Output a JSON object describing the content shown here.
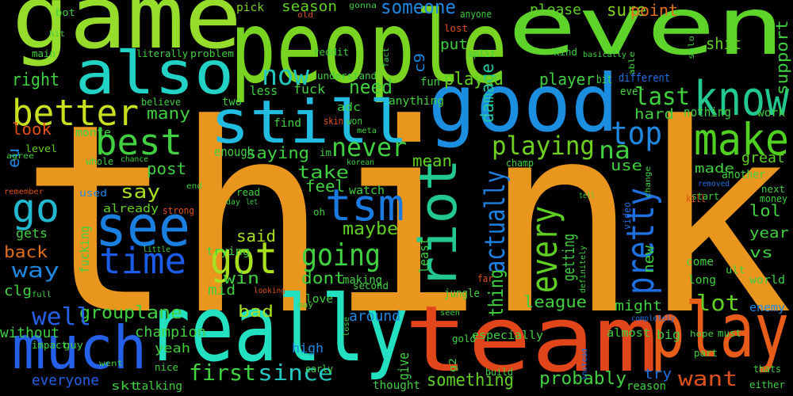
{
  "words": [
    {
      "text": "think",
      "color": "#e8961e"
    },
    {
      "text": "people",
      "color": "#78d420"
    },
    {
      "text": "game",
      "color": "#96dc2a"
    },
    {
      "text": "even",
      "color": "#5ed42a"
    },
    {
      "text": "team",
      "color": "#e0461a"
    },
    {
      "text": "play",
      "color": "#e85c1a"
    },
    {
      "text": "really",
      "color": "#22e0c0"
    },
    {
      "text": "good",
      "color": "#1c8ee0"
    },
    {
      "text": "also",
      "color": "#22d2c4"
    },
    {
      "text": "still",
      "color": "#22bce0"
    },
    {
      "text": "know",
      "color": "#22c890"
    },
    {
      "text": "make",
      "color": "#50d020"
    },
    {
      "text": "much",
      "color": "#2460e8"
    },
    {
      "text": "better",
      "color": "#c8e020"
    },
    {
      "text": "best",
      "color": "#40d040"
    },
    {
      "text": "go",
      "color": "#22b8d0"
    },
    {
      "text": "see",
      "color": "#1a80e0"
    },
    {
      "text": "time",
      "color": "#1a5ce8"
    },
    {
      "text": "got",
      "color": "#a8e020"
    },
    {
      "text": "tsm",
      "color": "#1a7ae0"
    },
    {
      "text": "riot",
      "color": "#22c890"
    },
    {
      "text": "every",
      "color": "#60d020"
    },
    {
      "text": "pretty",
      "color": "#1e70e0"
    },
    {
      "text": "actually",
      "color": "#1e80e0"
    },
    {
      "text": "thing",
      "color": "#40d040"
    },
    {
      "text": "going",
      "color": "#40d040"
    },
    {
      "text": "now",
      "color": "#22c8c0"
    },
    {
      "text": "never",
      "color": "#40d040"
    },
    {
      "text": "playing",
      "color": "#70d020"
    },
    {
      "text": "top",
      "color": "#1e88e0"
    },
    {
      "text": "last",
      "color": "#40d040"
    },
    {
      "text": "na",
      "color": "#40d040"
    },
    {
      "text": "someone",
      "color": "#1e88e0"
    },
    {
      "text": "damage",
      "color": "#22c8a0"
    },
    {
      "text": "c9",
      "color": "#1e88e0"
    },
    {
      "text": "need",
      "color": "#40d040"
    },
    {
      "text": "played",
      "color": "#60d020"
    },
    {
      "text": "player",
      "color": "#40d040"
    },
    {
      "text": "sure",
      "color": "#80d020"
    },
    {
      "text": "point",
      "color": "#e0701a"
    },
    {
      "text": "please",
      "color": "#60d020"
    },
    {
      "text": "shit",
      "color": "#60d020"
    },
    {
      "text": "support",
      "color": "#40d040"
    },
    {
      "text": "season",
      "color": "#60d020"
    },
    {
      "text": "pick",
      "color": "#80d020"
    },
    {
      "text": "right",
      "color": "#40d040"
    },
    {
      "text": "look",
      "color": "#e0501a"
    },
    {
      "text": "eu",
      "color": "#1e88e0"
    },
    {
      "text": "level",
      "color": "#60d020"
    },
    {
      "text": "agree",
      "color": "#40d040"
    },
    {
      "text": "many",
      "color": "#40d040"
    },
    {
      "text": "mean",
      "color": "#60d020"
    },
    {
      "text": "say",
      "color": "#a8e020"
    },
    {
      "text": "post",
      "color": "#40d040"
    },
    {
      "text": "take",
      "color": "#40d040"
    },
    {
      "text": "feel",
      "color": "#40d040"
    },
    {
      "text": "saying",
      "color": "#40d040"
    },
    {
      "text": "use",
      "color": "#40d040"
    },
    {
      "text": "made",
      "color": "#40d040"
    },
    {
      "text": "great",
      "color": "#60d020"
    },
    {
      "text": "hard",
      "color": "#40d040"
    },
    {
      "text": "maybe",
      "color": "#60d020"
    },
    {
      "text": "said",
      "color": "#a8e020"
    },
    {
      "text": "getting",
      "color": "#40d040"
    },
    {
      "text": "new",
      "color": "#40d040"
    },
    {
      "text": "lol",
      "color": "#40d040"
    },
    {
      "text": "year",
      "color": "#40d040"
    },
    {
      "text": "vs",
      "color": "#40d040"
    },
    {
      "text": "way",
      "color": "#1e88e0"
    },
    {
      "text": "back",
      "color": "#e0701a"
    },
    {
      "text": "gets",
      "color": "#40d040"
    },
    {
      "text": "clg",
      "color": "#40d040"
    },
    {
      "text": "win",
      "color": "#40d040"
    },
    {
      "text": "dont",
      "color": "#40d040"
    },
    {
      "text": "league",
      "color": "#40d040"
    },
    {
      "text": "lot",
      "color": "#60d020"
    },
    {
      "text": "might",
      "color": "#40d040"
    },
    {
      "text": "bad",
      "color": "#a8e020"
    },
    {
      "text": "lane",
      "color": "#40d040"
    },
    {
      "text": "group",
      "color": "#40d040"
    },
    {
      "text": "well",
      "color": "#2460e8"
    },
    {
      "text": "champion",
      "color": "#40d040"
    },
    {
      "text": "around",
      "color": "#1e88e0"
    },
    {
      "text": "love",
      "color": "#40d040"
    },
    {
      "text": "mid",
      "color": "#40d040"
    },
    {
      "text": "without",
      "color": "#40d040"
    },
    {
      "text": "high",
      "color": "#1e88e0"
    },
    {
      "text": "first",
      "color": "#40d040"
    },
    {
      "text": "since",
      "color": "#22c8c0"
    },
    {
      "text": "something",
      "color": "#60d020"
    },
    {
      "text": "probably",
      "color": "#40d040"
    },
    {
      "text": "want",
      "color": "#e0501a"
    },
    {
      "text": "try",
      "color": "#1e70e0"
    },
    {
      "text": "yeah",
      "color": "#40d040"
    },
    {
      "text": "skt",
      "color": "#40d040"
    },
    {
      "text": "talking",
      "color": "#40d040"
    },
    {
      "text": "everyone",
      "color": "#2460e8"
    },
    {
      "text": "give",
      "color": "#40d040"
    },
    {
      "text": "thought",
      "color": "#40d040"
    },
    {
      "text": "big",
      "color": "#40d040"
    },
    {
      "text": "gold",
      "color": "#40d040"
    },
    {
      "text": "fucking",
      "color": "#40d040"
    },
    {
      "text": "used",
      "color": "#1e88e0"
    },
    {
      "text": "already",
      "color": "#60d020"
    },
    {
      "text": "trying",
      "color": "#40d040"
    },
    {
      "text": "watch",
      "color": "#40d040"
    },
    {
      "text": "second",
      "color": "#40d040"
    },
    {
      "text": "least",
      "color": "#40d040"
    },
    {
      "text": "ult",
      "color": "#40d040"
    },
    {
      "text": "world",
      "color": "#40d040"
    },
    {
      "text": "long",
      "color": "#40d040"
    },
    {
      "text": "come",
      "color": "#40d040"
    },
    {
      "text": "enemy",
      "color": "#1e88e0"
    },
    {
      "text": "must",
      "color": "#40d040"
    },
    {
      "text": "hope",
      "color": "#40d040"
    },
    {
      "text": "part",
      "color": "#40d040"
    },
    {
      "text": "especially",
      "color": "#40d040"
    },
    {
      "text": "almost",
      "color": "#40d040"
    },
    {
      "text": "build",
      "color": "#40d040"
    },
    {
      "text": "went",
      "color": "#40d040"
    },
    {
      "text": "nice",
      "color": "#40d040"
    },
    {
      "text": "impact",
      "color": "#40d040"
    },
    {
      "text": "either",
      "color": "#40d040"
    },
    {
      "text": "thats",
      "color": "#40d040"
    },
    {
      "text": "reason",
      "color": "#40d040"
    },
    {
      "text": "literally",
      "color": "#40d040"
    },
    {
      "text": "problem",
      "color": "#40d040"
    },
    {
      "text": "bot",
      "color": "#40d040"
    },
    {
      "text": "hit",
      "color": "#40d040"
    },
    {
      "text": "main",
      "color": "#40d040"
    },
    {
      "text": "reddit",
      "color": "#40d040"
    },
    {
      "text": "understand",
      "color": "#40d040"
    },
    {
      "text": "old",
      "color": "#e0501a"
    },
    {
      "text": "anyone",
      "color": "#40d040"
    },
    {
      "text": "gonna",
      "color": "#40d040"
    },
    {
      "text": "lost",
      "color": "#e0501a"
    },
    {
      "text": "put",
      "color": "#40d040"
    },
    {
      "text": "fun",
      "color": "#40d040"
    },
    {
      "text": "anything",
      "color": "#40d040"
    },
    {
      "text": "fuck",
      "color": "#40d040"
    },
    {
      "text": "less",
      "color": "#40d040"
    },
    {
      "text": "two",
      "color": "#40d040"
    },
    {
      "text": "find",
      "color": "#40d040"
    },
    {
      "text": "im",
      "color": "#40d040"
    },
    {
      "text": "enough",
      "color": "#40d040"
    },
    {
      "text": "won",
      "color": "#40d040"
    },
    {
      "text": "skin",
      "color": "#e0501a"
    },
    {
      "text": "adc",
      "color": "#40d040"
    },
    {
      "text": "korean",
      "color": "#40d040"
    },
    {
      "text": "meta",
      "color": "#40d040"
    },
    {
      "text": "fact",
      "color": "#40d040"
    },
    {
      "text": "split",
      "color": "#40d040"
    },
    {
      "text": "kind",
      "color": "#40d040"
    },
    {
      "text": "basically",
      "color": "#40d040"
    },
    {
      "text": "able",
      "color": "#40d040"
    },
    {
      "text": "bit",
      "color": "#40d040"
    },
    {
      "text": "different",
      "color": "#1e70e0"
    },
    {
      "text": "ever",
      "color": "#40d040"
    },
    {
      "text": "work",
      "color": "#40d040"
    },
    {
      "text": "nothing",
      "color": "#40d040"
    },
    {
      "text": "believe",
      "color": "#40d040"
    },
    {
      "text": "chance",
      "color": "#40d040"
    },
    {
      "text": "whole",
      "color": "#40d040"
    },
    {
      "text": "start",
      "color": "#40d040"
    },
    {
      "text": "another",
      "color": "#40d040"
    },
    {
      "text": "removed",
      "color": "#1e70e0"
    },
    {
      "text": "next",
      "color": "#40d040"
    },
    {
      "text": "money",
      "color": "#40d040"
    },
    {
      "text": "kill",
      "color": "#e0501a"
    },
    {
      "text": "tell",
      "color": "#40d040"
    },
    {
      "text": "change",
      "color": "#40d040"
    },
    {
      "text": "video",
      "color": "#1e70e0"
    },
    {
      "text": "definitely",
      "color": "#40d040"
    },
    {
      "text": "instead",
      "color": "#1e70e0"
    },
    {
      "text": "completely",
      "color": "#1e70e0"
    },
    {
      "text": "jungle",
      "color": "#40d040"
    },
    {
      "text": "far",
      "color": "#e0501a"
    },
    {
      "text": "making",
      "color": "#40d040"
    },
    {
      "text": "seen",
      "color": "#40d040"
    },
    {
      "text": "lose",
      "color": "#40d040"
    },
    {
      "text": "early",
      "color": "#40d040"
    },
    {
      "text": "may",
      "color": "#40d040"
    },
    {
      "text": "full",
      "color": "#40d040"
    },
    {
      "text": "looking",
      "color": "#e0501a"
    },
    {
      "text": "little",
      "color": "#40d040"
    },
    {
      "text": "strong",
      "color": "#e0501a"
    },
    {
      "text": "let",
      "color": "#40d040"
    },
    {
      "text": "day",
      "color": "#40d040"
    },
    {
      "text": "read",
      "color": "#40d040"
    },
    {
      "text": "end",
      "color": "#40d040"
    },
    {
      "text": "remember",
      "color": "#e0501a"
    },
    {
      "text": "oh",
      "color": "#40d040"
    },
    {
      "text": "solo",
      "color": "#40d040"
    },
    {
      "text": "g2",
      "color": "#40d040"
    },
    {
      "text": "guy",
      "color": "#40d040"
    },
    {
      "text": "monte",
      "color": "#40d040"
    },
    {
      "text": "champ",
      "color": "#40d040"
    }
  ]
}
